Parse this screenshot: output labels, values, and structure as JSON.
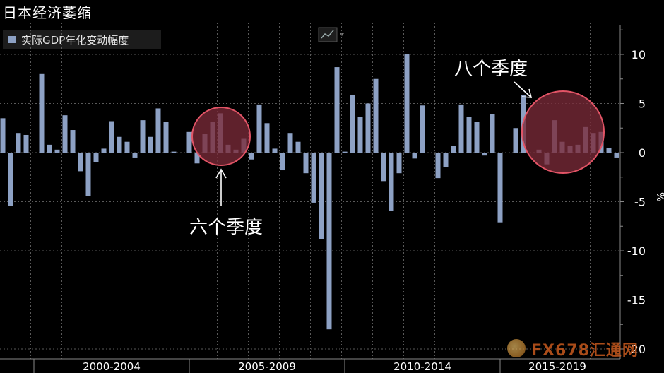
{
  "title": "日本经济萎缩",
  "legend": {
    "label": "实际GDP年化变动幅度"
  },
  "colors": {
    "bar": "#8da1c4",
    "highlight_fill": "#7a2a38",
    "highlight_stroke": "#e25466",
    "grid": "#5a5a5a"
  },
  "annotations": [
    {
      "text": "六个季度"
    },
    {
      "text": "八个季度"
    }
  ],
  "watermark": {
    "text": "FX678汇通网"
  },
  "chart_data": {
    "type": "bar",
    "ylabel": "%",
    "ylim": [
      -20,
      12.5
    ],
    "yticks": [
      10,
      5,
      0,
      -5,
      -10,
      -15,
      -20
    ],
    "period_labels": [
      "2000-2004",
      "2005-2009",
      "2010-2014",
      "2015-2019"
    ],
    "grid": true,
    "legend_position": "top-left",
    "series": [
      {
        "name": "实际GDP年化变动幅度",
        "values": [
          3.5,
          -5.4,
          2.0,
          1.8,
          0.0,
          8.0,
          0.8,
          0.3,
          3.8,
          2.3,
          -1.9,
          -4.4,
          -1.0,
          0.4,
          3.2,
          1.6,
          1.1,
          -0.5,
          3.3,
          1.6,
          4.5,
          3.1,
          0.1,
          0.0,
          2.1,
          -1.1,
          1.9,
          3.1,
          4.0,
          0.8,
          0.3,
          1.4,
          -0.7,
          4.9,
          3.0,
          0.4,
          -1.8,
          2.0,
          1.1,
          -2.1,
          -5.1,
          -8.8,
          -18.0,
          8.7,
          0.1,
          5.9,
          3.6,
          5.0,
          7.5,
          -2.9,
          -5.9,
          -2.1,
          10.0,
          -0.6,
          4.8,
          0.0,
          -2.6,
          -1.5,
          0.7,
          4.9,
          3.6,
          3.1,
          -0.3,
          3.9,
          -7.1,
          0.0,
          2.5,
          5.9,
          0.0,
          0.3,
          -1.2,
          3.3,
          1.1,
          0.7,
          0.8,
          2.6,
          2.0,
          2.1,
          0.5,
          -0.5
        ]
      }
    ]
  }
}
